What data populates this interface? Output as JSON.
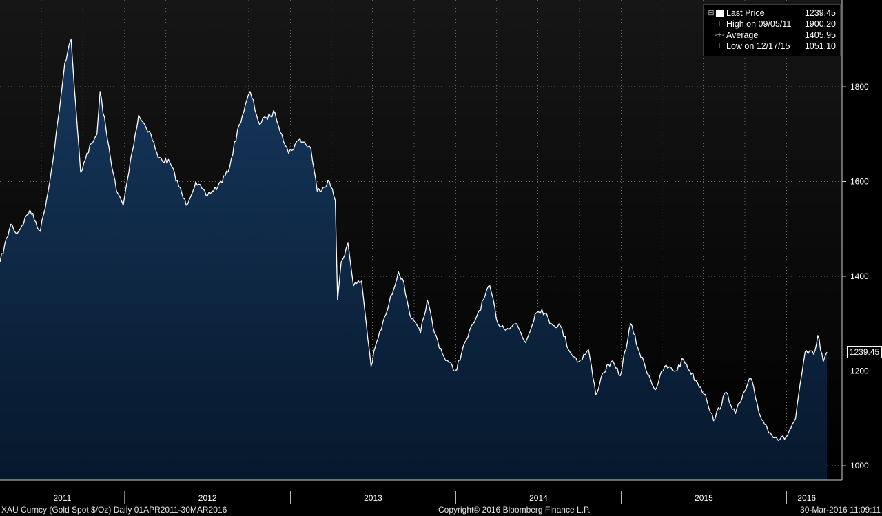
{
  "legend": {
    "last": {
      "label": "Last Price",
      "value": "1239.45"
    },
    "high": {
      "label": "High on 09/05/11",
      "value": "1900.20"
    },
    "average": {
      "label": "Average",
      "value": "1405.95"
    },
    "low": {
      "label": "Low on 12/17/15",
      "value": "1051.10"
    }
  },
  "last_tag": "1239.45",
  "footer": {
    "left": "XAU Curncy (Gold Spot  $/Oz)  Daily 01APR2011-30MAR2016",
    "center": "Copyright© 2016 Bloomberg Finance L.P.",
    "right": "30-Mar-2016 11:09:11"
  },
  "colors": {
    "line": "#ffffff",
    "fill_top": "#17385e",
    "fill_bottom": "#06182c",
    "grid": "#6a6a6a"
  },
  "chart_data": {
    "type": "area",
    "title": "",
    "xlabel": "",
    "ylabel": "",
    "ylim": [
      970,
      2000
    ],
    "y_ticks": [
      1000,
      1200,
      1400,
      1600,
      1800
    ],
    "x_labels": [
      "2011",
      "2012",
      "2013",
      "2014",
      "2015",
      "2016"
    ],
    "grid": true,
    "legend_position": "top-right",
    "series": [
      {
        "x": [
          "2011-04-01",
          "2011-04-25",
          "2011-05-09",
          "2011-06-06",
          "2011-06-29",
          "2011-07-20",
          "2011-08-10",
          "2011-08-22",
          "2011-09-05",
          "2011-09-12",
          "2011-09-26",
          "2011-10-10",
          "2011-11-01",
          "2011-11-08",
          "2011-11-24",
          "2011-12-14",
          "2011-12-29",
          "2012-01-17",
          "2012-02-01",
          "2012-02-28",
          "2012-03-15",
          "2012-04-10",
          "2012-05-16",
          "2012-06-06",
          "2012-06-29",
          "2012-07-25",
          "2012-08-16",
          "2012-09-10",
          "2012-10-04",
          "2012-10-25",
          "2012-11-08",
          "2012-11-28",
          "2012-12-13",
          "2012-12-28",
          "2013-01-22",
          "2013-02-15",
          "2013-03-01",
          "2013-03-28",
          "2013-04-10",
          "2013-04-15",
          "2013-04-23",
          "2013-05-08",
          "2013-05-20",
          "2013-06-07",
          "2013-06-28",
          "2013-07-10",
          "2013-07-31",
          "2013-08-27",
          "2013-09-05",
          "2013-09-25",
          "2013-10-15",
          "2013-10-30",
          "2013-11-15",
          "2013-12-06",
          "2013-12-31",
          "2014-01-24",
          "2014-02-18",
          "2014-03-17",
          "2014-04-04",
          "2014-04-25",
          "2014-05-15",
          "2014-06-04",
          "2014-06-25",
          "2014-07-10",
          "2014-07-31",
          "2014-08-20",
          "2014-09-10",
          "2014-09-30",
          "2014-10-21",
          "2014-11-06",
          "2014-11-21",
          "2014-12-10",
          "2014-12-30",
          "2015-01-22",
          "2015-02-10",
          "2015-03-17",
          "2015-04-07",
          "2015-05-01",
          "2015-05-18",
          "2015-06-15",
          "2015-07-06",
          "2015-07-24",
          "2015-08-21",
          "2015-09-10",
          "2015-10-14",
          "2015-11-04",
          "2015-11-26",
          "2015-12-17",
          "2015-12-31",
          "2016-01-21",
          "2016-02-11",
          "2016-03-01",
          "2016-03-10",
          "2016-03-22",
          "2016-03-30"
        ],
        "values": [
          1430,
          1510,
          1490,
          1540,
          1495,
          1600,
          1750,
          1850,
          1900,
          1800,
          1620,
          1660,
          1700,
          1790,
          1690,
          1580,
          1550,
          1660,
          1740,
          1700,
          1650,
          1640,
          1550,
          1600,
          1570,
          1590,
          1620,
          1720,
          1790,
          1720,
          1735,
          1745,
          1700,
          1660,
          1690,
          1670,
          1580,
          1600,
          1560,
          1350,
          1430,
          1470,
          1380,
          1390,
          1210,
          1260,
          1320,
          1410,
          1395,
          1310,
          1280,
          1350,
          1280,
          1230,
          1200,
          1265,
          1320,
          1380,
          1300,
          1290,
          1300,
          1260,
          1320,
          1330,
          1300,
          1295,
          1240,
          1220,
          1245,
          1150,
          1195,
          1220,
          1190,
          1300,
          1240,
          1160,
          1210,
          1200,
          1225,
          1180,
          1150,
          1095,
          1155,
          1110,
          1185,
          1105,
          1070,
          1055,
          1060,
          1100,
          1240,
          1235,
          1275,
          1220,
          1240
        ]
      }
    ]
  }
}
